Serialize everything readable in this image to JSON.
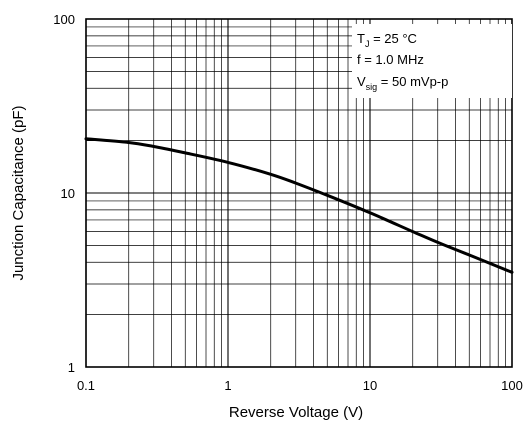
{
  "chart_data": {
    "type": "line",
    "xlabel": "Reverse Voltage (V)",
    "ylabel": "Junction Capacitance (pF)",
    "x_scale": "log",
    "y_scale": "log",
    "xlim": [
      0.1,
      100
    ],
    "ylim": [
      1,
      100
    ],
    "grid": true,
    "x_ticks": [
      "0.1",
      "1",
      "10",
      "100"
    ],
    "y_ticks": [
      "1",
      "10",
      "100"
    ],
    "annotations": {
      "line1": {
        "main": "T",
        "sub": "J",
        "rest": " = 25 °C"
      },
      "line2": {
        "main": "f = 1.0 MHz",
        "sub": "",
        "rest": ""
      },
      "line3": {
        "main": "V",
        "sub": "sig",
        "rest": " = 50 mVp-p"
      }
    },
    "series": [
      {
        "color": "#000000",
        "x": [
          0.1,
          0.2,
          0.3,
          0.5,
          1,
          2,
          3,
          5,
          10,
          20,
          30,
          50,
          100
        ],
        "y": [
          20.5,
          19.5,
          18.5,
          17.0,
          15.0,
          12.8,
          11.4,
          9.7,
          7.7,
          6.0,
          5.2,
          4.4,
          3.5
        ]
      }
    ]
  }
}
